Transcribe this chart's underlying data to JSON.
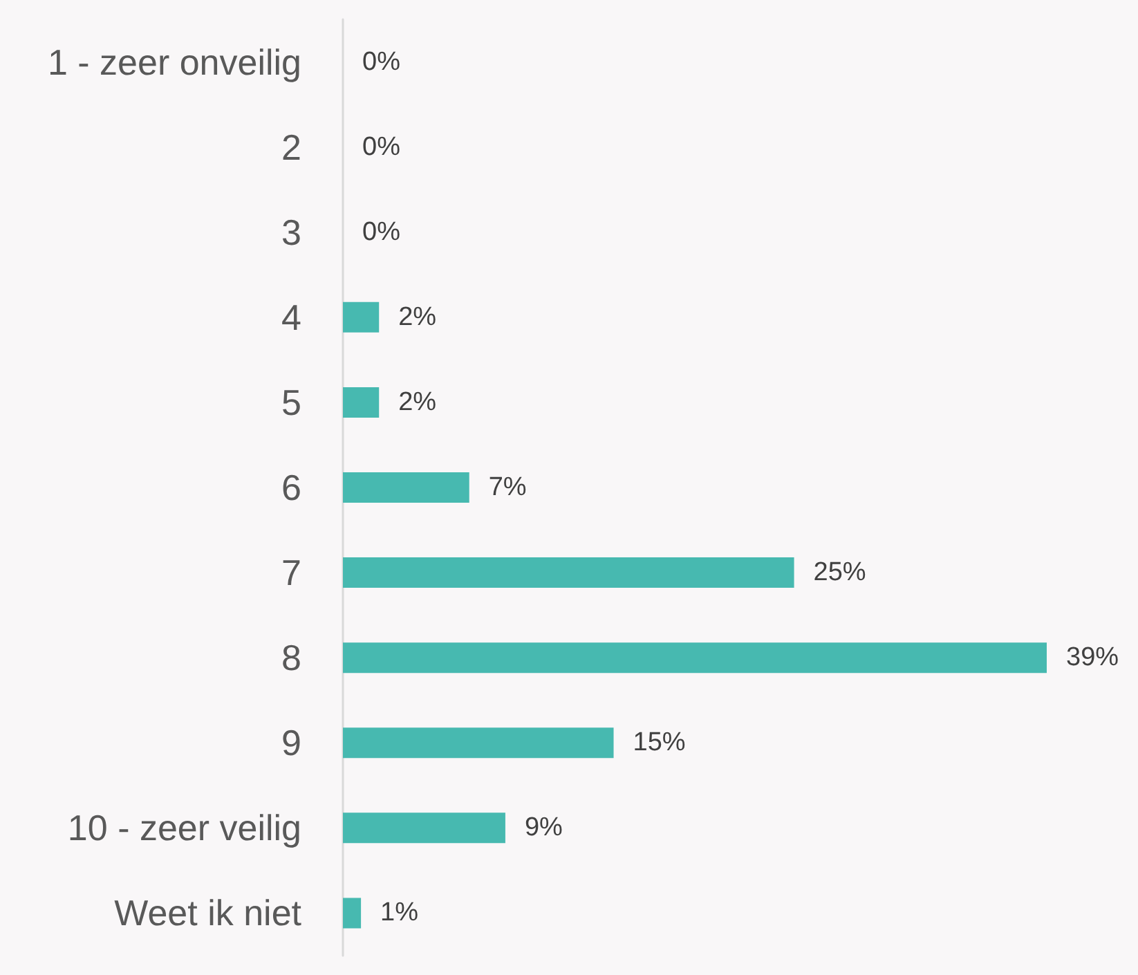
{
  "chart_data": {
    "type": "bar",
    "orientation": "horizontal",
    "categories": [
      "1 - zeer onveilig",
      "2",
      "3",
      "4",
      "5",
      "6",
      "7",
      "8",
      "9",
      "10 - zeer veilig",
      "Weet ik niet"
    ],
    "values": [
      0,
      0,
      0,
      2,
      2,
      7,
      25,
      39,
      15,
      9,
      1
    ],
    "value_labels": [
      "0%",
      "0%",
      "0%",
      "2%",
      "2%",
      "7%",
      "25%",
      "39%",
      "15%",
      "9%",
      "1%"
    ],
    "color": "#47b9b0"
  }
}
